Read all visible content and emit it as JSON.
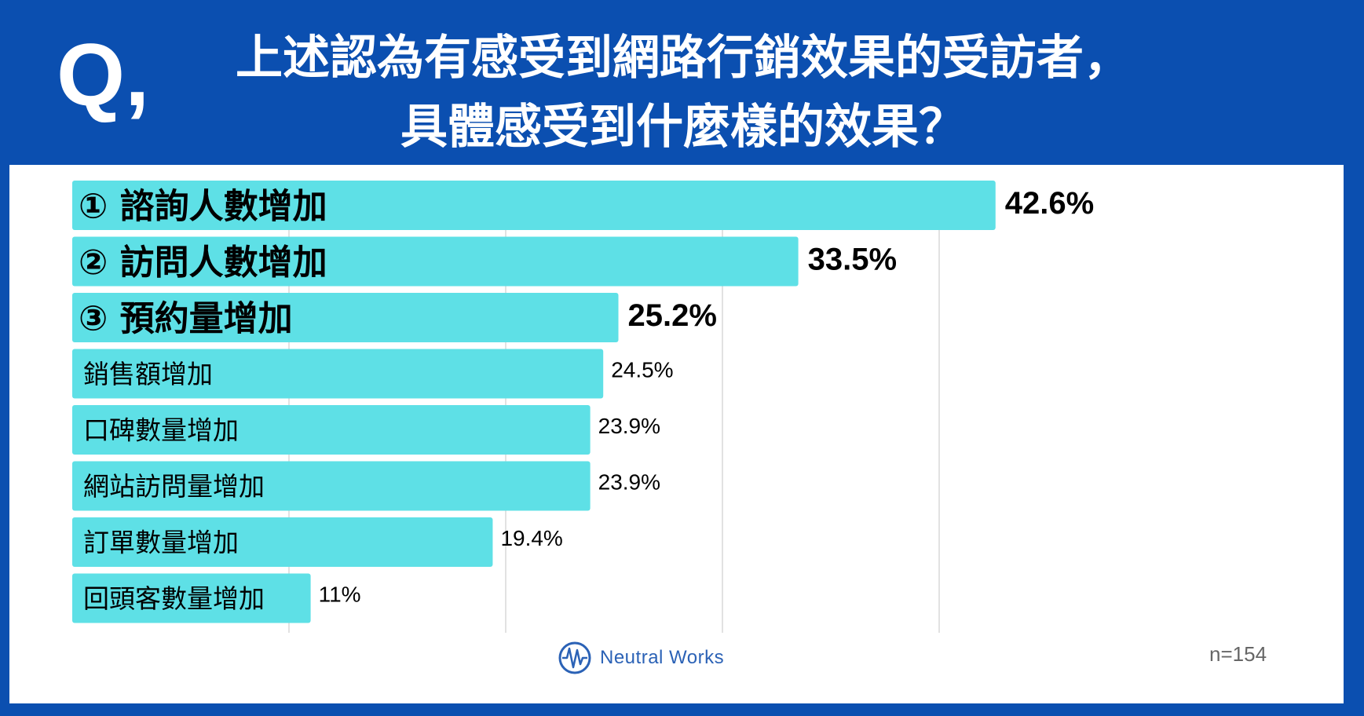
{
  "header": {
    "q_mark": "Q,",
    "title_line1": "上述認為有感受到網路行銷效果的受訪者，",
    "title_line2": "具體感受到什麼樣的效果？"
  },
  "footer": {
    "logo_text": "Neutral Works",
    "sample_size": "n=154"
  },
  "colors": {
    "frame": "#0b4fb0",
    "bar": "#5ee0e6",
    "text": "#000000",
    "grid": "#d9d9d9"
  },
  "chart_data": {
    "type": "bar",
    "orientation": "horizontal",
    "categories": [
      "① 諮詢人數增加",
      "② 訪問人數增加",
      "③ 預約量增加",
      "銷售額增加",
      "口碑數量增加",
      "網站訪問量增加",
      "訂單數量增加",
      "回頭客數量增加"
    ],
    "values": [
      42.6,
      33.5,
      25.2,
      24.5,
      23.9,
      23.9,
      19.4,
      11
    ],
    "value_labels": [
      "42.6%",
      "33.5%",
      "25.2%",
      "24.5%",
      "23.9%",
      "23.9%",
      "19.4%",
      "11%"
    ],
    "highlight_top": 3,
    "xlim": [
      0,
      50
    ],
    "grid": true
  }
}
